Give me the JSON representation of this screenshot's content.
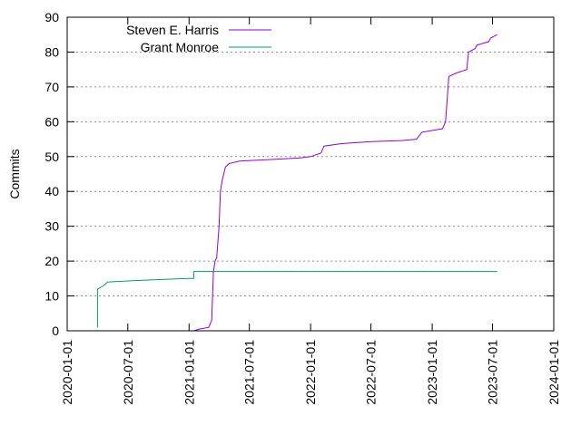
{
  "chart_data": {
    "type": "line",
    "title": "",
    "xlabel": "",
    "ylabel": "Commits",
    "xlim": [
      "2020-01-01",
      "2024-01-01"
    ],
    "ylim": [
      0,
      90
    ],
    "grid": true,
    "legend_position": "top-left",
    "x_ticks": [
      "2020-01-01",
      "2020-07-01",
      "2021-01-01",
      "2021-07-01",
      "2022-01-01",
      "2022-07-01",
      "2023-01-01",
      "2023-07-01",
      "2024-01-01"
    ],
    "y_ticks": [
      0,
      10,
      20,
      30,
      40,
      50,
      60,
      70,
      80,
      90
    ],
    "series": [
      {
        "name": "Steven E. Harris",
        "color": "#9400d3",
        "points": [
          [
            "2021-01-15",
            0
          ],
          [
            "2021-02-01",
            0.5
          ],
          [
            "2021-03-01",
            1
          ],
          [
            "2021-03-10",
            3
          ],
          [
            "2021-03-15",
            17
          ],
          [
            "2021-03-20",
            20
          ],
          [
            "2021-03-25",
            21
          ],
          [
            "2021-04-01",
            30
          ],
          [
            "2021-04-05",
            40
          ],
          [
            "2021-04-10",
            43
          ],
          [
            "2021-04-20",
            47
          ],
          [
            "2021-05-01",
            48
          ],
          [
            "2021-06-01",
            48.7
          ],
          [
            "2021-08-01",
            49
          ],
          [
            "2021-10-01",
            49.3
          ],
          [
            "2021-12-01",
            49.6
          ],
          [
            "2022-01-01",
            50
          ],
          [
            "2022-02-01",
            51
          ],
          [
            "2022-02-10",
            53
          ],
          [
            "2022-04-01",
            53.7
          ],
          [
            "2022-07-01",
            54.3
          ],
          [
            "2022-10-01",
            54.6
          ],
          [
            "2022-11-15",
            55
          ],
          [
            "2022-12-01",
            57
          ],
          [
            "2023-02-01",
            58
          ],
          [
            "2023-02-10",
            60
          ],
          [
            "2023-02-20",
            73
          ],
          [
            "2023-03-15",
            74
          ],
          [
            "2023-04-15",
            75
          ],
          [
            "2023-04-20",
            80
          ],
          [
            "2023-05-10",
            81
          ],
          [
            "2023-05-15",
            82
          ],
          [
            "2023-06-20",
            83
          ],
          [
            "2023-06-25",
            84
          ],
          [
            "2023-07-15",
            85
          ]
        ]
      },
      {
        "name": "Grant Monroe",
        "color": "#009e73",
        "points": [
          [
            "2020-04-01",
            1
          ],
          [
            "2020-04-01",
            12
          ],
          [
            "2020-04-20",
            13
          ],
          [
            "2020-05-01",
            14
          ],
          [
            "2020-07-01",
            14.3
          ],
          [
            "2020-10-01",
            14.7
          ],
          [
            "2021-01-01",
            15
          ],
          [
            "2021-01-15",
            15
          ],
          [
            "2021-01-15",
            17
          ],
          [
            "2023-07-15",
            17
          ]
        ]
      }
    ]
  }
}
